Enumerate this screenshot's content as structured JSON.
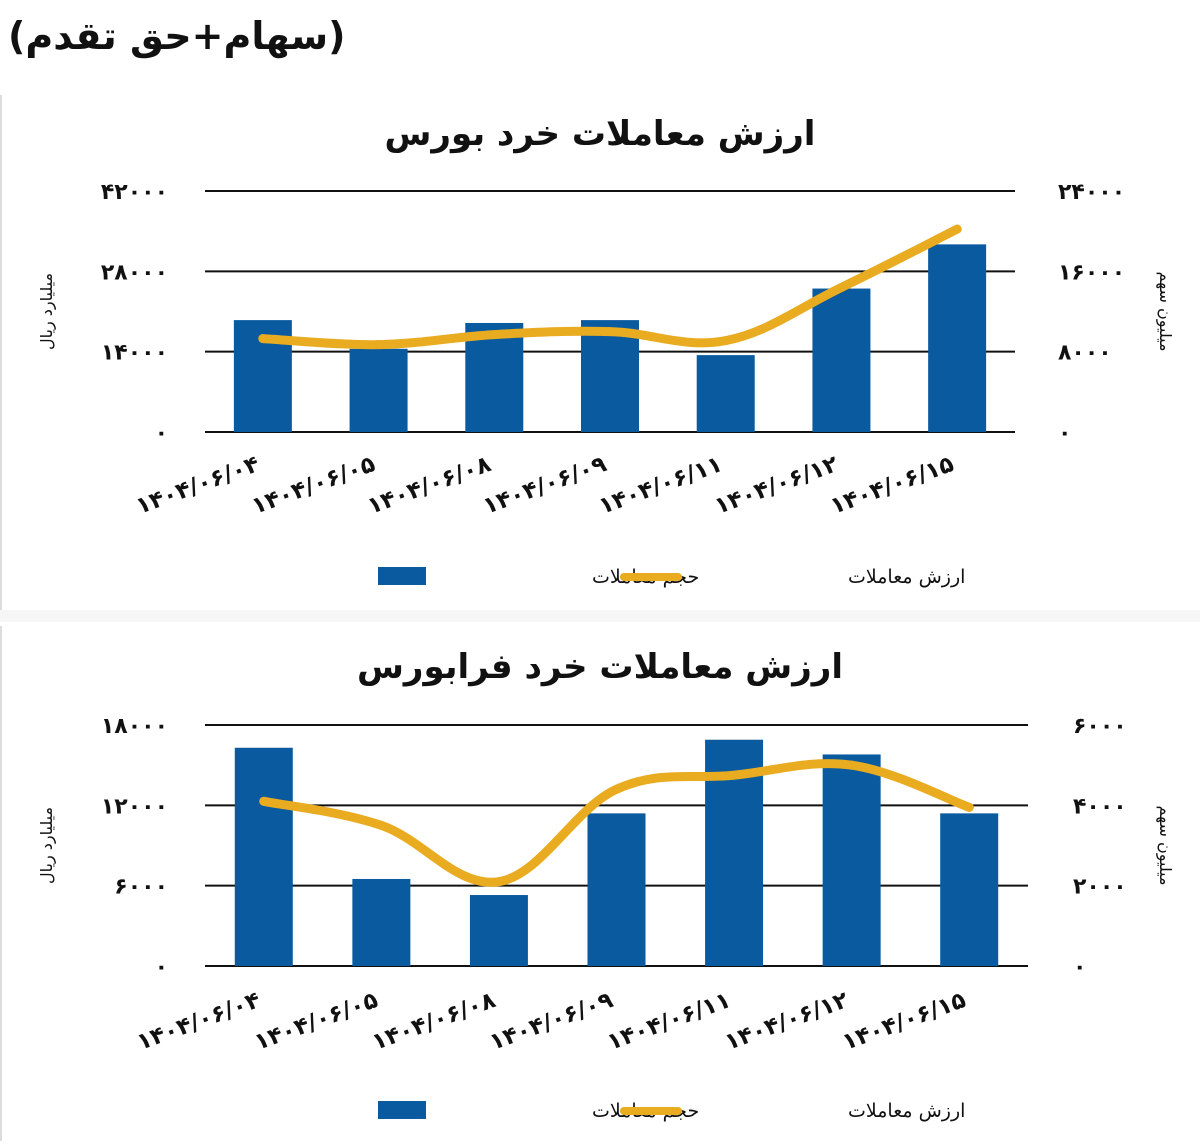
{
  "page": {
    "header": "(سهام+حق تقدم)"
  },
  "colors": {
    "bar": "#0a5aa0",
    "line": "#e9ab1f",
    "grid": "#111111",
    "text": "#111111"
  },
  "legend": {
    "bar_label": "حجم معاملات",
    "line_label": "ارزش معاملات"
  },
  "chart_data": [
    {
      "type": "bar",
      "title": "ارزش معاملات خرد بورس",
      "ylabel_left": "میلیارد ریال",
      "ylabel_right": "میلیون سهم",
      "categories": [
        "۱۴۰۴/۰۶/۰۴",
        "۱۴۰۴/۰۶/۰۵",
        "۱۴۰۴/۰۶/۰۸",
        "۱۴۰۴/۰۶/۰۹",
        "۱۴۰۴/۰۶/۱۱",
        "۱۴۰۴/۰۶/۱۲",
        "۱۴۰۴/۰۶/۱۵"
      ],
      "left_axis": {
        "ylim": [
          0,
          42000
        ],
        "ticks": [
          0,
          14000,
          28000,
          42000
        ],
        "tick_labels": [
          "۰",
          "۱۴۰۰۰",
          "۲۸۰۰۰",
          "۴۲۰۰۰"
        ]
      },
      "right_axis": {
        "ylim": [
          0,
          24000
        ],
        "ticks": [
          0,
          8000,
          16000,
          24000
        ],
        "tick_labels": [
          "۰",
          "۸۰۰۰",
          "۱۶۰۰۰",
          "۲۴۰۰۰"
        ]
      },
      "series": [
        {
          "name": "حجم معاملات",
          "type": "bar",
          "axis": "left",
          "values": [
            19500,
            14500,
            19000,
            19500,
            13400,
            25000,
            32700
          ]
        },
        {
          "name": "ارزش معاملات",
          "type": "line",
          "axis": "right",
          "values": [
            9300,
            8700,
            9700,
            10000,
            9100,
            14400,
            20200
          ]
        }
      ],
      "grid": true,
      "legend_position": "bottom"
    },
    {
      "type": "bar",
      "title": "ارزش معاملات خرد فرابورس",
      "ylabel_left": "میلیارد ریال",
      "ylabel_right": "میلیون سهم",
      "categories": [
        "۱۴۰۴/۰۶/۰۴",
        "۱۴۰۴/۰۶/۰۵",
        "۱۴۰۴/۰۶/۰۸",
        "۱۴۰۴/۰۶/۰۹",
        "۱۴۰۴/۰۶/۱۱",
        "۱۴۰۴/۰۶/۱۲",
        "۱۴۰۴/۰۶/۱۵"
      ],
      "left_axis": {
        "ylim": [
          0,
          18000
        ],
        "ticks": [
          0,
          6000,
          12000,
          18000
        ],
        "tick_labels": [
          "۰",
          "۶۰۰۰",
          "۱۲۰۰۰",
          "۱۸۰۰۰"
        ]
      },
      "right_axis": {
        "ylim": [
          0,
          6000
        ],
        "ticks": [
          0,
          2000,
          4000,
          6000
        ],
        "tick_labels": [
          "۰",
          "۲۰۰۰",
          "۴۰۰۰",
          "۶۰۰۰"
        ]
      },
      "series": [
        {
          "name": "حجم معاملات",
          "type": "bar",
          "axis": "left",
          "values": [
            16300,
            6500,
            5300,
            11400,
            16900,
            15800,
            11400
          ]
        },
        {
          "name": "ارزش معاملات",
          "type": "line",
          "axis": "right",
          "values": [
            4100,
            3500,
            2100,
            4400,
            4750,
            5000,
            3950
          ]
        }
      ],
      "grid": true,
      "legend_position": "bottom"
    }
  ]
}
